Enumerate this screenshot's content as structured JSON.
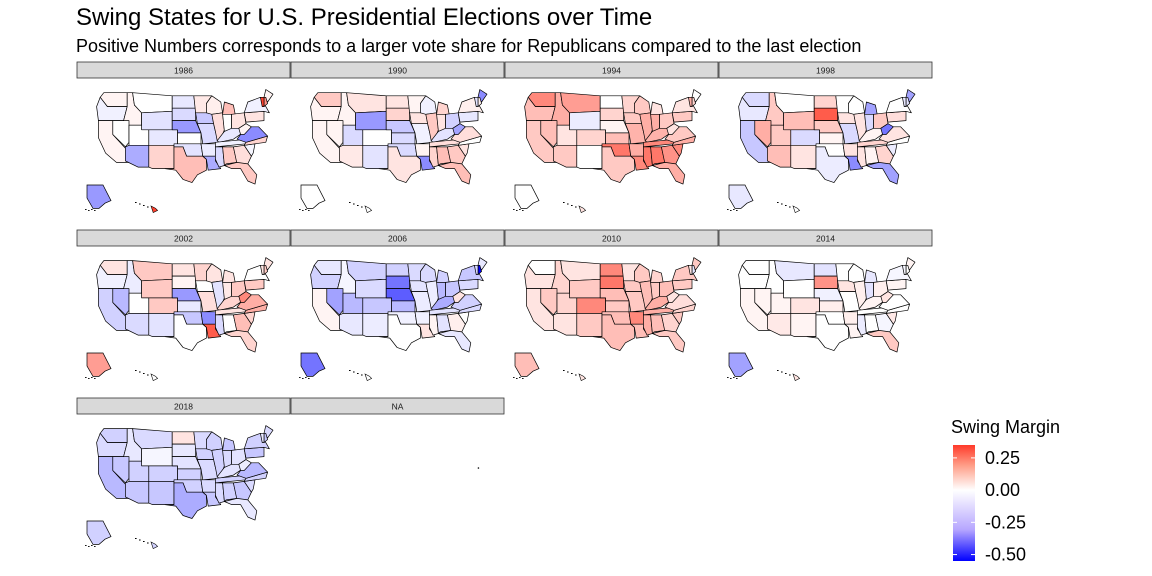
{
  "title": "Swing States for U.S. Presidential Elections over Time",
  "subtitle": "Positive Numbers corresponds to a larger vote share for Republicans compared to the last election",
  "chart_data": {
    "type": "heatmap",
    "subtype": "faceted choropleth map",
    "panels": [
      "1986",
      "1990",
      "1994",
      "1998",
      "2002",
      "2006",
      "2010",
      "2014",
      "2018",
      "NA"
    ],
    "legend": {
      "title": "Swing Margin",
      "ticks": [
        "0.25",
        "0.00",
        "-0.25",
        "-0.50"
      ],
      "tick_values": [
        0.25,
        0.0,
        -0.25,
        -0.5
      ],
      "range": [
        -0.55,
        0.35
      ],
      "placement": "right",
      "low_color": "#0000ff",
      "mid_color": "#ffffff",
      "high_color": "#ff0000"
    },
    "state_swing_estimates": {
      "1986": {
        "ID": 0.02,
        "MT": 0.0,
        "WA": 0.02,
        "OR": -0.03,
        "CA": 0.02,
        "NV": 0.0,
        "WY": -0.06,
        "UT": 0.0,
        "AZ": -0.18,
        "CO": -0.05,
        "NM": 0.08,
        "ND": -0.05,
        "SD": -0.08,
        "NE": -0.22,
        "KS": 0.0,
        "OK": -0.06,
        "TX": 0.12,
        "MN": 0.04,
        "IA": -0.12,
        "MO": -0.08,
        "AR": -0.04,
        "LA": -0.18,
        "WI": 0.03,
        "IL": 0.06,
        "MI": 0.12,
        "IN": 0.0,
        "OH": 0.05,
        "KY": -0.05,
        "TN": -0.03,
        "MS": -0.08,
        "AL": 0.1,
        "GA": 0.06,
        "FL": 0.1,
        "SC": -0.02,
        "NC": 0.08,
        "VA": -0.25,
        "WV": 0.02,
        "PA": 0.05,
        "NY": -0.03,
        "ME": 0.02,
        "NH": 0.2,
        "VT": 0.35,
        "AK": -0.22,
        "HI": 0.35
      },
      "1990": {
        "ID": 0.02,
        "MT": 0.05,
        "WA": 0.1,
        "OR": 0.02,
        "CA": 0.02,
        "NV": 0.02,
        "WY": -0.22,
        "UT": -0.08,
        "AZ": 0.04,
        "CO": 0.0,
        "NM": -0.06,
        "ND": 0.05,
        "SD": 0.08,
        "NE": -0.12,
        "KS": -0.08,
        "OK": -0.08,
        "TX": 0.05,
        "MN": 0.02,
        "IA": 0.05,
        "MO": -0.03,
        "AR": 0.02,
        "LA": -0.25,
        "WI": -0.03,
        "IL": 0.1,
        "MI": 0.08,
        "IN": 0.05,
        "OH": -0.1,
        "KY": -0.06,
        "TN": 0.06,
        "MS": 0.08,
        "AL": 0.12,
        "GA": 0.1,
        "FL": 0.12,
        "SC": 0.05,
        "NC": 0.0,
        "VA": 0.06,
        "WV": -0.2,
        "PA": -0.05,
        "NY": 0.03,
        "ME": -0.25,
        "NH": 0.03,
        "VT": -0.06,
        "AK": 0.0,
        "HI": 0.0
      },
      "1994": {
        "ID": 0.15,
        "MT": 0.18,
        "WA": 0.22,
        "OR": 0.12,
        "CA": 0.1,
        "NV": 0.12,
        "WY": -0.04,
        "UT": 0.05,
        "AZ": 0.1,
        "CO": 0.08,
        "NM": 0.0,
        "ND": 0.0,
        "SD": 0.08,
        "NE": 0.02,
        "KS": 0.12,
        "OK": 0.25,
        "TX": 0.1,
        "MN": 0.08,
        "IA": 0.1,
        "MO": 0.14,
        "AR": 0.15,
        "LA": 0.22,
        "WI": 0.1,
        "IL": 0.15,
        "MI": 0.05,
        "IN": 0.15,
        "OH": 0.1,
        "KY": 0.14,
        "TN": 0.22,
        "MS": 0.25,
        "AL": 0.25,
        "GA": 0.2,
        "FL": 0.15,
        "SC": 0.22,
        "NC": 0.15,
        "VA": 0.1,
        "WV": 0.05,
        "PA": 0.1,
        "NY": 0.05,
        "ME": 0.0,
        "NH": 0.08,
        "VT": 0.15,
        "AK": 0.0,
        "HI": 0.05
      },
      "1998": {
        "ID": 0.1,
        "MT": 0.0,
        "WA": -0.08,
        "OR": -0.05,
        "CA": -0.12,
        "NV": 0.15,
        "WY": 0.12,
        "UT": 0.1,
        "AZ": 0.12,
        "CO": -0.08,
        "NM": 0.05,
        "ND": 0.08,
        "SD": 0.3,
        "NE": 0.1,
        "KS": 0.02,
        "OK": 0.0,
        "TX": -0.04,
        "MN": 0.0,
        "IA": 0.05,
        "MO": -0.08,
        "AR": 0.05,
        "LA": -0.25,
        "WI": 0.0,
        "IL": 0.05,
        "MI": -0.2,
        "IN": -0.08,
        "OH": 0.1,
        "KY": 0.02,
        "TN": 0.08,
        "MS": 0.05,
        "AL": 0.02,
        "GA": 0.08,
        "FL": -0.2,
        "SC": -0.04,
        "NC": 0.0,
        "VA": 0.05,
        "WV": -0.3,
        "PA": 0.06,
        "NY": 0.0,
        "ME": -0.2,
        "NH": -0.06,
        "VT": -0.05,
        "AK": -0.05,
        "HI": 0.0
      },
      "2002": {
        "ID": -0.04,
        "MT": 0.1,
        "WA": 0.05,
        "OR": -0.03,
        "CA": -0.1,
        "NV": -0.15,
        "WY": 0.1,
        "UT": 0.0,
        "AZ": -0.08,
        "CO": 0.1,
        "NM": -0.06,
        "ND": 0.05,
        "SD": 0.02,
        "NE": -0.22,
        "KS": -0.05,
        "OK": -0.12,
        "TX": 0.0,
        "MN": 0.08,
        "IA": 0.0,
        "MO": 0.06,
        "AR": -0.25,
        "LA": 0.3,
        "WI": 0.05,
        "IL": -0.06,
        "MI": 0.05,
        "IN": 0.04,
        "OH": 0.1,
        "KY": 0.08,
        "TN": 0.05,
        "MS": -0.08,
        "AL": 0.0,
        "GA": 0.12,
        "FL": 0.08,
        "SC": 0.08,
        "NC": 0.15,
        "VA": 0.15,
        "WV": 0.22,
        "PA": 0.1,
        "NY": 0.0,
        "ME": 0.05,
        "NH": 0.1,
        "VT": 0.05,
        "AK": 0.18,
        "HI": 0.0
      },
      "2006": {
        "ID": -0.02,
        "MT": -0.1,
        "WA": -0.05,
        "OR": -0.1,
        "CA": 0.02,
        "NV": -0.2,
        "WY": -0.08,
        "UT": -0.15,
        "AZ": -0.05,
        "CO": -0.12,
        "NM": -0.04,
        "ND": -0.1,
        "SD": -0.3,
        "NE": -0.35,
        "KS": -0.15,
        "OK": -0.03,
        "TX": 0.0,
        "MN": -0.08,
        "IA": -0.06,
        "MO": -0.04,
        "AR": -0.03,
        "LA": 0.05,
        "WI": -0.08,
        "IL": -0.04,
        "MI": -0.1,
        "IN": -0.15,
        "OH": -0.12,
        "KY": -0.18,
        "TN": -0.06,
        "MS": 0.02,
        "AL": -0.06,
        "GA": 0.03,
        "FL": -0.05,
        "SC": 0.0,
        "NC": -0.08,
        "VA": -0.1,
        "WV": 0.05,
        "PA": -0.08,
        "NY": -0.12,
        "ME": -0.05,
        "NH": -0.55,
        "VT": -0.08,
        "AK": -0.3,
        "HI": 0.0
      },
      "2010": {
        "ID": 0.08,
        "MT": 0.05,
        "WA": 0.0,
        "OR": 0.05,
        "CA": 0.05,
        "NV": 0.1,
        "WY": 0.1,
        "UT": 0.08,
        "AZ": 0.05,
        "CO": 0.22,
        "NM": 0.1,
        "ND": 0.22,
        "SD": 0.25,
        "NE": 0.12,
        "KS": 0.1,
        "OK": 0.12,
        "TX": 0.12,
        "MN": 0.05,
        "IA": 0.1,
        "MO": 0.1,
        "AR": 0.22,
        "LA": 0.12,
        "WI": 0.1,
        "IL": 0.12,
        "MI": 0.08,
        "IN": 0.1,
        "OH": 0.12,
        "KY": 0.15,
        "TN": 0.15,
        "MS": 0.15,
        "AL": 0.12,
        "GA": 0.08,
        "FL": 0.1,
        "SC": 0.1,
        "NC": 0.08,
        "VA": 0.06,
        "WV": 0.05,
        "PA": 0.1,
        "NY": 0.1,
        "ME": 0.1,
        "NH": -0.05,
        "VT": 0.05,
        "AK": 0.12,
        "HI": 0.05
      },
      "2014": {
        "ID": 0.0,
        "MT": -0.05,
        "WA": 0.0,
        "OR": 0.0,
        "CA": 0.02,
        "NV": 0.02,
        "WY": 0.0,
        "UT": 0.02,
        "AZ": 0.04,
        "CO": 0.05,
        "NM": 0.02,
        "ND": -0.06,
        "SD": 0.2,
        "NE": -0.03,
        "KS": 0.03,
        "OK": 0.0,
        "TX": 0.0,
        "MN": 0.0,
        "IA": 0.05,
        "MO": 0.0,
        "AR": 0.03,
        "LA": 0.02,
        "WI": 0.0,
        "IL": 0.03,
        "MI": -0.05,
        "IN": -0.06,
        "OH": 0.03,
        "KY": 0.02,
        "TN": 0.0,
        "MS": -0.04,
        "AL": 0.0,
        "GA": -0.02,
        "FL": 0.1,
        "SC": 0.04,
        "NC": 0.0,
        "VA": 0.0,
        "WV": 0.05,
        "PA": 0.02,
        "NY": -0.02,
        "ME": 0.02,
        "NH": 0.0,
        "VT": -0.02,
        "AK": -0.2,
        "HI": 0.05
      },
      "2018": {
        "ID": -0.05,
        "MT": -0.08,
        "WA": -0.1,
        "OR": -0.08,
        "CA": -0.15,
        "NV": -0.12,
        "WY": -0.02,
        "UT": -0.1,
        "AZ": -0.12,
        "CO": -0.1,
        "NM": -0.12,
        "ND": 0.05,
        "SD": -0.05,
        "NE": -0.06,
        "KS": -0.1,
        "OK": -0.1,
        "TX": -0.18,
        "MN": -0.08,
        "IA": -0.1,
        "MO": -0.08,
        "AR": -0.08,
        "LA": -0.12,
        "WI": -0.1,
        "IL": -0.1,
        "MI": -0.12,
        "IN": -0.08,
        "OH": -0.06,
        "KY": -0.06,
        "TN": -0.1,
        "MS": -0.08,
        "AL": -0.1,
        "GA": -0.12,
        "FL": -0.05,
        "SC": -0.08,
        "NC": -0.1,
        "VA": -0.15,
        "WV": -0.04,
        "PA": -0.12,
        "NY": -0.1,
        "ME": -0.08,
        "NH": -0.12,
        "VT": -0.05,
        "AK": -0.1,
        "HI": -0.1
      }
    }
  }
}
